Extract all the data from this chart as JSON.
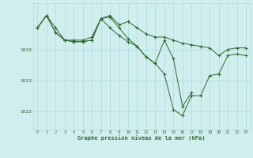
{
  "bg_color": "#d0eeee",
  "grid_color": "#aadddd",
  "line_color": "#2d6a2d",
  "marker_color": "#2d6a2d",
  "xlabel": "Graphe pression niveau de la mer (hPa)",
  "xlabel_color": "#2d6a2d",
  "ylabel_ticks": [
    1022,
    1023,
    1024
  ],
  "ylim": [
    1021.4,
    1025.5
  ],
  "xlim": [
    -0.5,
    23.5
  ],
  "xticks": [
    0,
    1,
    2,
    3,
    4,
    5,
    6,
    7,
    8,
    9,
    10,
    11,
    12,
    13,
    14,
    15,
    16,
    17,
    18,
    19,
    20,
    21,
    22,
    23
  ],
  "series": [
    [
      1024.7,
      1025.1,
      1024.7,
      1024.3,
      1024.3,
      1024.3,
      1024.4,
      1025.0,
      1025.1,
      1024.8,
      1024.9,
      1024.7,
      1024.5,
      1024.4,
      1024.4,
      1024.3,
      1024.2,
      1024.15,
      1024.1,
      1024.05,
      1023.8,
      1024.0,
      1024.05,
      1024.05
    ],
    [
      1024.7,
      1025.1,
      1024.55,
      1024.3,
      1024.25,
      1024.25,
      1024.3,
      1025.0,
      1025.05,
      1024.7,
      1024.35,
      1024.1,
      1023.75,
      1023.55,
      1023.2,
      1022.05,
      1021.85,
      1022.5,
      1022.5,
      1023.15,
      1023.2,
      1023.8,
      1023.85,
      1023.8
    ],
    [
      1024.7,
      1025.1,
      1024.55,
      1024.3,
      1024.25,
      1024.25,
      1024.3,
      1025.0,
      1024.7,
      1024.45,
      1024.25,
      1024.1,
      1023.75,
      1023.55,
      1024.3,
      1023.7,
      1022.15,
      1022.6,
      null,
      null,
      null,
      null,
      null,
      null
    ]
  ],
  "figsize": [
    3.2,
    2.0
  ],
  "dpi": 100
}
